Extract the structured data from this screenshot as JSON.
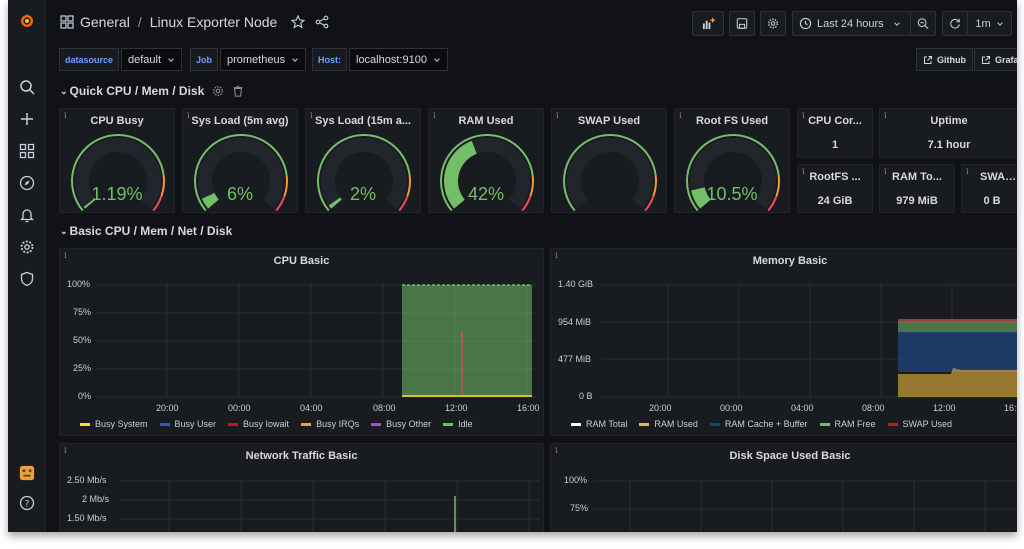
{
  "header": {
    "folder": "General",
    "separator": "/",
    "dashboard_title": "Linux Exporter Node",
    "time_range": "Last 24 hours",
    "refresh_interval": "1m"
  },
  "variables": [
    {
      "label": "datasource",
      "value": "default"
    },
    {
      "label": "Job",
      "value": "prometheus"
    },
    {
      "label": "Host:",
      "value": "localhost:9100"
    }
  ],
  "links": [
    {
      "label": "Github"
    },
    {
      "label": "Grafa"
    }
  ],
  "rows": {
    "quick": "Quick CPU / Mem / Disk",
    "basic": "Basic CPU / Mem / Net / Disk"
  },
  "gauges": [
    {
      "title": "CPU Busy",
      "value": "1.19%",
      "fraction": 0.0119
    },
    {
      "title": "Sys Load (5m avg)",
      "value": "6%",
      "fraction": 0.06
    },
    {
      "title": "Sys Load (15m a...",
      "value": "2%",
      "fraction": 0.02
    },
    {
      "title": "RAM Used",
      "value": "42%",
      "fraction": 0.42
    },
    {
      "title": "SWAP Used",
      "value": "",
      "fraction": 0
    },
    {
      "title": "Root FS Used",
      "value": "10.5%",
      "fraction": 0.105
    }
  ],
  "stats": {
    "cpu_cores": {
      "title": "CPU Cor...",
      "value": "1"
    },
    "uptime": {
      "title": "Uptime",
      "value": "7.1 hour"
    },
    "rootfs_total": {
      "title": "RootFS ...",
      "value": "24 GiB"
    },
    "ram_total": {
      "title": "RAM To...",
      "value": "979 MiB"
    },
    "swap_total": {
      "title": "SWAP T...",
      "value": "0 B"
    }
  },
  "panel_info": "i",
  "cpu_basic": {
    "title": "CPU Basic",
    "y_ticks": [
      "100%",
      "75%",
      "50%",
      "25%",
      "0%"
    ],
    "x_ticks": [
      "20:00",
      "00:00",
      "04:00",
      "08:00",
      "12:00",
      "16:00"
    ],
    "legend": [
      {
        "name": "Busy System",
        "color": "#fade2a"
      },
      {
        "name": "Busy User",
        "color": "#1f60c4"
      },
      {
        "name": "Busy Iowait",
        "color": "#c4162a"
      },
      {
        "name": "Busy IRQs",
        "color": "#ff9830"
      },
      {
        "name": "Busy Other",
        "color": "#a352cc"
      },
      {
        "name": "Idle",
        "color": "#73bf69"
      }
    ]
  },
  "memory_basic": {
    "title": "Memory Basic",
    "y_ticks": [
      "1.40 GiB",
      "954 MiB",
      "477 MiB",
      "0 B"
    ],
    "x_ticks": [
      "20:00",
      "00:00",
      "04:00",
      "08:00",
      "12:00",
      "16:00"
    ],
    "legend": [
      {
        "name": "RAM Total",
        "color": "#ffffff"
      },
      {
        "name": "RAM Used",
        "color": "#eab839"
      },
      {
        "name": "RAM Cache + Buffer",
        "color": "#1f3f6e"
      },
      {
        "name": "RAM Free",
        "color": "#73bf69"
      },
      {
        "name": "SWAP Used",
        "color": "#c4162a"
      }
    ]
  },
  "network_basic": {
    "title": "Network Traffic Basic",
    "y_ticks": [
      "2.50 Mb/s",
      "2 Mb/s",
      "1.50 Mb/s"
    ]
  },
  "disk_basic": {
    "title": "Disk Space Used Basic",
    "y_ticks": [
      "100%",
      "75%"
    ]
  },
  "colors": {
    "background": "#111217",
    "panel": "#181b1f",
    "green": "#73bf69",
    "orange": "#ff9830",
    "red": "#f2495c",
    "accent_blue": "#6e9fff"
  }
}
